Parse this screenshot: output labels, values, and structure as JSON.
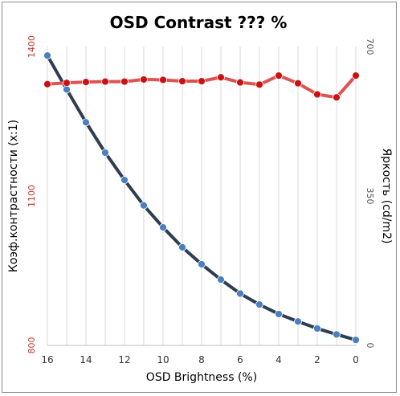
{
  "chart_data": {
    "type": "line",
    "title": "OSD Contrast ??? %",
    "xlabel": "OSD Brightness (%)",
    "ylabel_left": "Коэф.контрастности (x:1)",
    "ylabel_right": "Яркость (cd/m2)",
    "x_ticks": [
      "16",
      "14",
      "12",
      "10",
      "8",
      "6",
      "4",
      "2",
      "0"
    ],
    "x_reversed": true,
    "xlim": [
      0,
      16
    ],
    "left_axis": {
      "ylim": [
        800,
        1400
      ],
      "ticks": [
        "800",
        "1100",
        "1400"
      ],
      "color": "#c0392b"
    },
    "right_axis": {
      "ylim": [
        0,
        700
      ],
      "ticks": [
        "0",
        "350",
        "700"
      ]
    },
    "grid": "vertical",
    "series": [
      {
        "axis": "left",
        "color": "#2c3e50",
        "marker_color": "#4a7fc1",
        "x": [
          16,
          15,
          14,
          13,
          12,
          11,
          10,
          9,
          8,
          7,
          6,
          5,
          4,
          3,
          2,
          1,
          0
        ],
        "values": [
          1382,
          1314,
          1248,
          1187,
          1132,
          1081,
          1037,
          997,
          963,
          932,
          904,
          882,
          863,
          848,
          834,
          822,
          811
        ]
      },
      {
        "axis": "right",
        "color": "#e05252",
        "marker_color": "#cc1111",
        "x": [
          16,
          15,
          14,
          13,
          12,
          11,
          10,
          9,
          8,
          7,
          6,
          5,
          4,
          3,
          2,
          1,
          0
        ],
        "values": [
          612,
          615,
          617,
          618,
          618,
          623,
          622,
          619,
          619,
          628,
          616,
          611,
          632,
          614,
          588,
          581,
          632
        ]
      }
    ]
  }
}
